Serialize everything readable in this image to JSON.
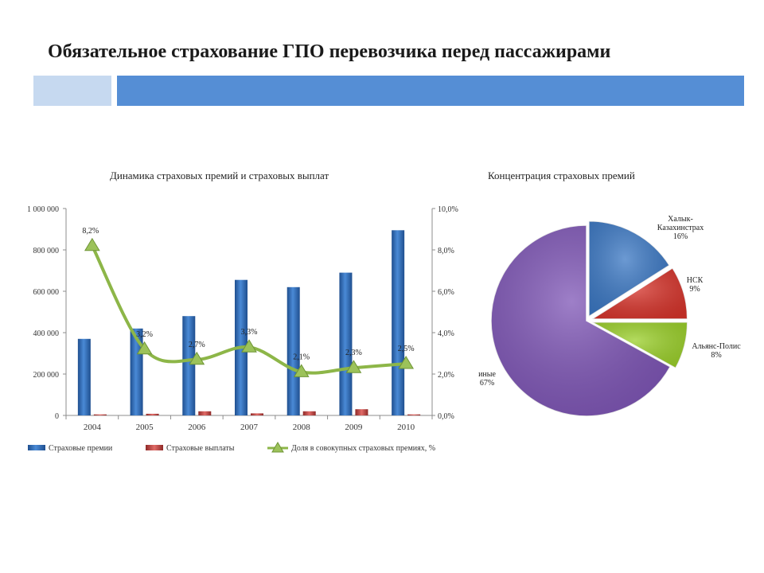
{
  "page": {
    "title": "Обязательное страхование ГПО перевозчика перед пассажирами"
  },
  "colors": {
    "accent_light": "#c6d9f0",
    "accent_dark": "#558ed5"
  },
  "chart_data": [
    {
      "type": "bar",
      "title": "Динамика страховых премий и страховых выплат",
      "categories": [
        "2004",
        "2005",
        "2006",
        "2007",
        "2008",
        "2009",
        "2010"
      ],
      "series": [
        {
          "name": "Страховые премии",
          "type": "bar",
          "axis": "left",
          "color": "#2e6db4",
          "values": [
            370000,
            420000,
            480000,
            655000,
            620000,
            690000,
            895000
          ]
        },
        {
          "name": "Страховые выплаты",
          "type": "bar",
          "axis": "left",
          "color": "#c0504d",
          "values": [
            5000,
            8000,
            20000,
            10000,
            20000,
            30000,
            5000
          ]
        },
        {
          "name": "Доля в совокупных страховых премиях, %",
          "type": "line",
          "axis": "right",
          "color": "#8db648",
          "values": [
            8.2,
            3.2,
            2.7,
            3.3,
            2.1,
            2.3,
            2.5
          ],
          "labels": [
            "8,2%",
            "3,2%",
            "2,7%",
            "3,3%",
            "2,1%",
            "2,3%",
            "2,5%"
          ]
        }
      ],
      "ylim_left": [
        0,
        1000000
      ],
      "ylim_right": [
        0,
        10
      ],
      "yticks_left": [
        "0",
        "200 000",
        "400 000",
        "600 000",
        "800 000",
        "1 000 000"
      ],
      "yticks_right": [
        "0,0%",
        "2,0%",
        "4,0%",
        "6,0%",
        "8,0%",
        "10,0%"
      ],
      "legend_position": "bottom",
      "grid": false
    },
    {
      "type": "pie",
      "title": "Концентрация страховых премий",
      "slices": [
        {
          "name": "Халык-Казахинстрах",
          "label_lines": [
            "Халык-",
            "Казахинстрах"
          ],
          "value": 16,
          "label": "16%",
          "color": "#3b78c4"
        },
        {
          "name": "НСК",
          "label_lines": [
            "НСК"
          ],
          "value": 9,
          "label": "9%",
          "color": "#d7342b"
        },
        {
          "name": "Альянс-Полис",
          "label_lines": [
            "Альянс-Полис"
          ],
          "value": 8,
          "label": "8%",
          "color": "#9bd02a"
        },
        {
          "name": "иные",
          "label_lines": [
            "иные"
          ],
          "value": 67,
          "label": "67%",
          "color": "#7e55b6"
        }
      ]
    }
  ]
}
